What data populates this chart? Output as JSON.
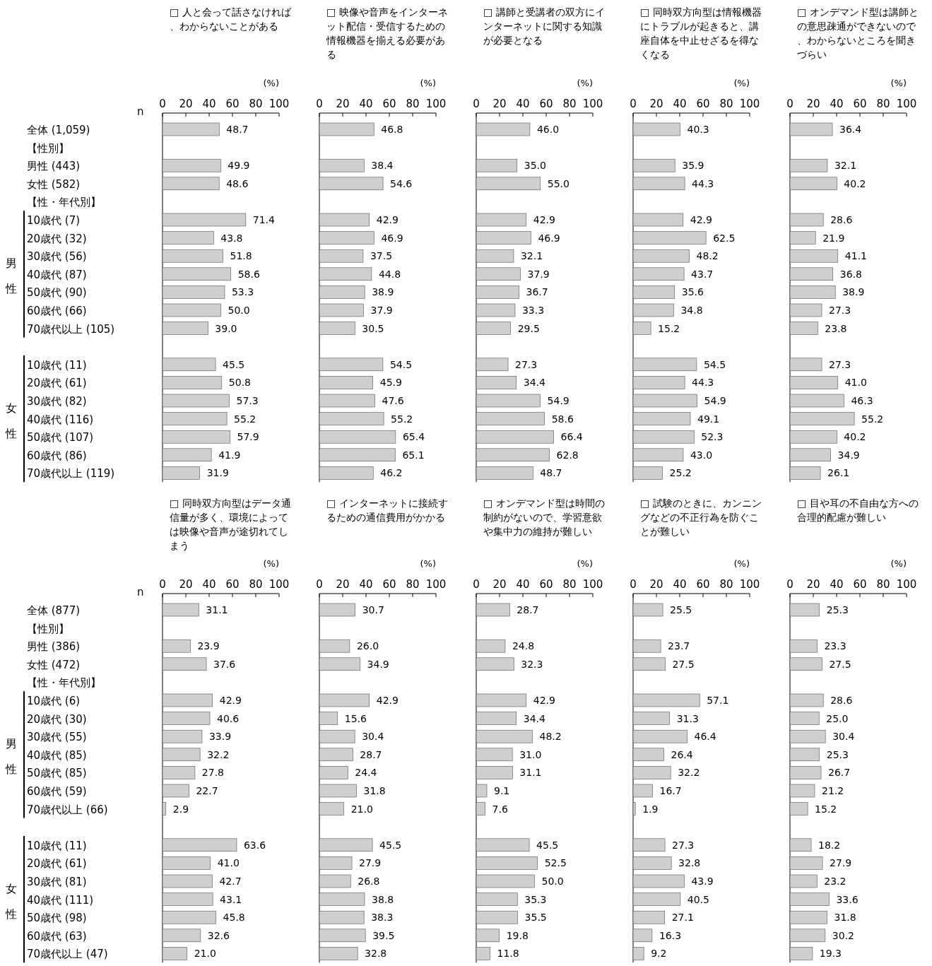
{
  "chart_data": [
    {
      "type": "bar",
      "orientation": "horizontal",
      "title": "□ 人と会って話さなければ、わからないことがある",
      "xlabel": "(%)",
      "color": "#cfcfcf",
      "xlim": [
        0,
        100
      ],
      "xticks": [
        0,
        20,
        40,
        60,
        80,
        100
      ],
      "categories": [
        "全体 (1,059)",
        "【性別】",
        "男性 (443)",
        "女性 (582)",
        "【性・年代別】",
        "10歳代 (7)",
        "20歳代 (32)",
        "30歳代 (56)",
        "40歳代 (87)",
        "50歳代 (90)",
        "60歳代 (66)",
        "70歳代以上 (105)",
        null,
        "10歳代 (11)",
        "20歳代 (61)",
        "30歳代 (82)",
        "40歳代 (116)",
        "50歳代 (107)",
        "60歳代 (86)",
        "70歳代以上 (119)"
      ],
      "values": [
        48.7,
        null,
        49.9,
        48.6,
        null,
        71.4,
        43.8,
        51.8,
        58.6,
        53.3,
        50.0,
        39.0,
        null,
        45.5,
        50.8,
        57.3,
        55.2,
        57.9,
        41.9,
        31.9
      ],
      "value_labels": [
        "48.7",
        null,
        "49.9",
        "48.6",
        null,
        "71.4",
        "43.8",
        "51.8",
        "58.6",
        "53.3",
        "50.0",
        "39.0",
        null,
        "45.5",
        "50.8",
        "57.3",
        "55.2",
        "57.9",
        "41.9",
        "31.9"
      ],
      "annotations": [
        "n",
        "男性",
        "女性"
      ]
    },
    {
      "type": "bar",
      "orientation": "horizontal",
      "title": "□ 映像や音声をインターネット配信・受信するための情報機器を揃える必要がある",
      "xlabel": "(%)",
      "color": "#cfcfcf",
      "xlim": [
        0,
        100
      ],
      "xticks": [
        0,
        20,
        40,
        60,
        80,
        100
      ],
      "categories": [
        null,
        null,
        null,
        null,
        null,
        null,
        null,
        null,
        null,
        null,
        null,
        null,
        null,
        null,
        null,
        null,
        null,
        null,
        null,
        null
      ],
      "values": [
        46.8,
        null,
        38.4,
        54.6,
        null,
        42.9,
        46.9,
        37.5,
        44.8,
        38.9,
        37.9,
        30.5,
        null,
        54.5,
        45.9,
        47.6,
        55.2,
        65.4,
        65.1,
        46.2
      ],
      "value_labels": [
        "46.8",
        null,
        "38.4",
        "54.6",
        null,
        "42.9",
        "46.9",
        "37.5",
        "44.8",
        "38.9",
        "37.9",
        "30.5",
        null,
        "54.5",
        "45.9",
        "47.6",
        "55.2",
        "65.4",
        "65.1",
        "46.2"
      ]
    },
    {
      "type": "bar",
      "orientation": "horizontal",
      "title": "□ 講師と受講者の双方にインターネットに関する知識が必要となる",
      "xlabel": "(%)",
      "color": "#cfcfcf",
      "xlim": [
        0,
        100
      ],
      "xticks": [
        0,
        20,
        40,
        60,
        80,
        100
      ],
      "categories": [
        null,
        null,
        null,
        null,
        null,
        null,
        null,
        null,
        null,
        null,
        null,
        null,
        null,
        null,
        null,
        null,
        null,
        null,
        null,
        null
      ],
      "values": [
        46.0,
        null,
        35.0,
        55.0,
        null,
        42.9,
        46.9,
        32.1,
        37.9,
        36.7,
        33.3,
        29.5,
        null,
        27.3,
        34.4,
        54.9,
        58.6,
        66.4,
        62.8,
        48.7
      ],
      "value_labels": [
        "46.0",
        null,
        "35.0",
        "55.0",
        null,
        "42.9",
        "46.9",
        "32.1",
        "37.9",
        "36.7",
        "33.3",
        "29.5",
        null,
        "27.3",
        "34.4",
        "54.9",
        "58.6",
        "66.4",
        "62.8",
        "48.7"
      ]
    },
    {
      "type": "bar",
      "orientation": "horizontal",
      "title": "□ 同時双方向型は情報機器にトラブルが起きると、講座自体を中止せざるを得なくなる",
      "xlabel": "(%)",
      "color": "#cfcfcf",
      "xlim": [
        0,
        100
      ],
      "xticks": [
        0,
        20,
        40,
        60,
        80,
        100
      ],
      "categories": [
        null,
        null,
        null,
        null,
        null,
        null,
        null,
        null,
        null,
        null,
        null,
        null,
        null,
        null,
        null,
        null,
        null,
        null,
        null,
        null
      ],
      "values": [
        40.3,
        null,
        35.9,
        44.3,
        null,
        42.9,
        62.5,
        48.2,
        43.7,
        35.6,
        34.8,
        15.2,
        null,
        54.5,
        44.3,
        54.9,
        49.1,
        52.3,
        43.0,
        25.2
      ],
      "value_labels": [
        "40.3",
        null,
        "35.9",
        "44.3",
        null,
        "42.9",
        "62.5",
        "48.2",
        "43.7",
        "35.6",
        "34.8",
        "15.2",
        null,
        "54.5",
        "44.3",
        "54.9",
        "49.1",
        "52.3",
        "43.0",
        "25.2"
      ]
    },
    {
      "type": "bar",
      "orientation": "horizontal",
      "title": "□ オンデマンド型は講師との意思疎通ができないので、わからないところを聞きづらい",
      "xlabel": "(%)",
      "color": "#cfcfcf",
      "xlim": [
        0,
        100
      ],
      "xticks": [
        0,
        20,
        40,
        60,
        80,
        100
      ],
      "categories": [
        null,
        null,
        null,
        null,
        null,
        null,
        null,
        null,
        null,
        null,
        null,
        null,
        null,
        null,
        null,
        null,
        null,
        null,
        null,
        null
      ],
      "values": [
        36.4,
        null,
        32.1,
        40.2,
        null,
        28.6,
        21.9,
        41.1,
        36.8,
        38.9,
        27.3,
        23.8,
        null,
        27.3,
        41.0,
        46.3,
        55.2,
        40.2,
        34.9,
        26.1
      ],
      "value_labels": [
        "36.4",
        null,
        "32.1",
        "40.2",
        null,
        "28.6",
        "21.9",
        "41.1",
        "36.8",
        "38.9",
        "27.3",
        "23.8",
        null,
        "27.3",
        "41.0",
        "46.3",
        "55.2",
        "40.2",
        "34.9",
        "26.1"
      ]
    },
    {
      "type": "bar",
      "orientation": "horizontal",
      "title": "□ 同時双方向型はデータ通信量が多く、環境によっては映像や音声が途切れてしまう",
      "xlabel": "(%)",
      "color": "#cfcfcf",
      "xlim": [
        0,
        100
      ],
      "xticks": [
        0,
        20,
        40,
        60,
        80,
        100
      ],
      "categories": [
        "全体 (877)",
        "【性別】",
        "男性 (386)",
        "女性 (472)",
        "【性・年代別】",
        "10歳代 (6)",
        "20歳代 (30)",
        "30歳代 (55)",
        "40歳代 (85)",
        "50歳代 (85)",
        "60歳代 (59)",
        "70歳代以上 (66)",
        null,
        "10歳代 (11)",
        "20歳代 (61)",
        "30歳代 (81)",
        "40歳代 (111)",
        "50歳代 (98)",
        "60歳代 (63)",
        "70歳代以上 (47)"
      ],
      "values": [
        31.1,
        null,
        23.9,
        37.6,
        null,
        42.9,
        40.6,
        33.9,
        32.2,
        27.8,
        22.7,
        2.9,
        null,
        63.6,
        41.0,
        42.7,
        43.1,
        45.8,
        32.6,
        21.0
      ],
      "value_labels": [
        "31.1",
        null,
        "23.9",
        "37.6",
        null,
        "42.9",
        "40.6",
        "33.9",
        "32.2",
        "27.8",
        "22.7",
        "2.9",
        null,
        "63.6",
        "41.0",
        "42.7",
        "43.1",
        "45.8",
        "32.6",
        "21.0"
      ],
      "annotations": [
        "n",
        "男性",
        "女性"
      ]
    },
    {
      "type": "bar",
      "orientation": "horizontal",
      "title": "□ インターネットに接続するための通信費用がかかる",
      "xlabel": "(%)",
      "color": "#cfcfcf",
      "xlim": [
        0,
        100
      ],
      "xticks": [
        0,
        20,
        40,
        60,
        80,
        100
      ],
      "categories": [
        null,
        null,
        null,
        null,
        null,
        null,
        null,
        null,
        null,
        null,
        null,
        null,
        null,
        null,
        null,
        null,
        null,
        null,
        null,
        null
      ],
      "values": [
        30.7,
        null,
        26.0,
        34.9,
        null,
        42.9,
        15.6,
        30.4,
        28.7,
        24.4,
        31.8,
        21.0,
        null,
        45.5,
        27.9,
        26.8,
        38.8,
        38.3,
        39.5,
        32.8
      ],
      "value_labels": [
        "30.7",
        null,
        "26.0",
        "34.9",
        null,
        "42.9",
        "15.6",
        "30.4",
        "28.7",
        "24.4",
        "31.8",
        "21.0",
        null,
        "45.5",
        "27.9",
        "26.8",
        "38.8",
        "38.3",
        "39.5",
        "32.8"
      ]
    },
    {
      "type": "bar",
      "orientation": "horizontal",
      "title": "□ オンデマンド型は時間の制約がないので、学習意欲や集中力の維持が難しい",
      "xlabel": "(%)",
      "color": "#cfcfcf",
      "xlim": [
        0,
        100
      ],
      "xticks": [
        0,
        20,
        40,
        60,
        80,
        100
      ],
      "categories": [
        null,
        null,
        null,
        null,
        null,
        null,
        null,
        null,
        null,
        null,
        null,
        null,
        null,
        null,
        null,
        null,
        null,
        null,
        null,
        null
      ],
      "values": [
        28.7,
        null,
        24.8,
        32.3,
        null,
        42.9,
        34.4,
        48.2,
        31.0,
        31.1,
        9.1,
        7.6,
        null,
        45.5,
        52.5,
        50.0,
        35.3,
        35.5,
        19.8,
        11.8
      ],
      "value_labels": [
        "28.7",
        null,
        "24.8",
        "32.3",
        null,
        "42.9",
        "34.4",
        "48.2",
        "31.0",
        "31.1",
        "9.1",
        "7.6",
        null,
        "45.5",
        "52.5",
        "50.0",
        "35.3",
        "35.5",
        "19.8",
        "11.8"
      ]
    },
    {
      "type": "bar",
      "orientation": "horizontal",
      "title": "□ 試験のときに、カンニングなどの不正行為を防ぐことが難しい",
      "xlabel": "(%)",
      "color": "#cfcfcf",
      "xlim": [
        0,
        100
      ],
      "xticks": [
        0,
        20,
        40,
        60,
        80,
        100
      ],
      "categories": [
        null,
        null,
        null,
        null,
        null,
        null,
        null,
        null,
        null,
        null,
        null,
        null,
        null,
        null,
        null,
        null,
        null,
        null,
        null,
        null
      ],
      "values": [
        25.5,
        null,
        23.7,
        27.5,
        null,
        57.1,
        31.3,
        46.4,
        26.4,
        32.2,
        16.7,
        1.9,
        null,
        27.3,
        32.8,
        43.9,
        40.5,
        27.1,
        16.3,
        9.2
      ],
      "value_labels": [
        "25.5",
        null,
        "23.7",
        "27.5",
        null,
        "57.1",
        "31.3",
        "46.4",
        "26.4",
        "32.2",
        "16.7",
        "1.9",
        null,
        "27.3",
        "32.8",
        "43.9",
        "40.5",
        "27.1",
        "16.3",
        "9.2"
      ]
    },
    {
      "type": "bar",
      "orientation": "horizontal",
      "title": "□ 目や耳の不自由な方への合理的配慮が難しい",
      "xlabel": "(%)",
      "color": "#cfcfcf",
      "xlim": [
        0,
        100
      ],
      "xticks": [
        0,
        20,
        40,
        60,
        80,
        100
      ],
      "categories": [
        null,
        null,
        null,
        null,
        null,
        null,
        null,
        null,
        null,
        null,
        null,
        null,
        null,
        null,
        null,
        null,
        null,
        null,
        null,
        null
      ],
      "values": [
        25.3,
        null,
        23.3,
        27.5,
        null,
        28.6,
        25.0,
        30.4,
        25.3,
        26.7,
        21.2,
        15.2,
        null,
        18.2,
        27.9,
        23.2,
        33.6,
        31.8,
        30.2,
        19.3
      ],
      "value_labels": [
        "25.3",
        null,
        "23.3",
        "27.5",
        null,
        "28.6",
        "25.0",
        "30.4",
        "25.3",
        "26.7",
        "21.2",
        "15.2",
        null,
        "18.2",
        "27.9",
        "23.2",
        "33.6",
        "31.8",
        "30.2",
        "19.3"
      ]
    }
  ]
}
